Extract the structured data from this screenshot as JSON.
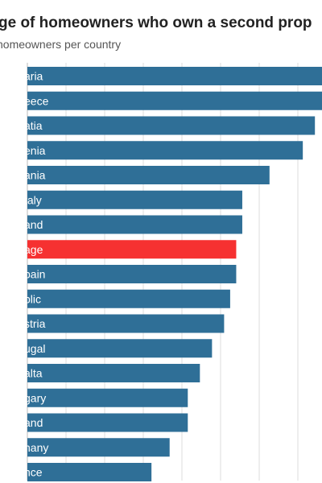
{
  "title": "ge of homeowners who own a second prop",
  "subtitle": "homeowners per country",
  "chart_data": {
    "type": "bar",
    "orientation": "horizontal",
    "categories": [
      "aria",
      "eece",
      "atia",
      "enia",
      "ania",
      "taly",
      "and",
      "age",
      "bain",
      "blic",
      "stria",
      "ugal",
      "alta",
      "gary",
      "and",
      "nany",
      "nce"
    ],
    "values": [
      100,
      100,
      95,
      91,
      80,
      71,
      71,
      69,
      69,
      67,
      65,
      61,
      57,
      53,
      53,
      47,
      41
    ],
    "highlight_index": 7,
    "colors": {
      "bar": "#2f6f97",
      "highlight": "#f63131",
      "grid": "#dddddd",
      "label": "#ffffff"
    },
    "grid": true
  }
}
